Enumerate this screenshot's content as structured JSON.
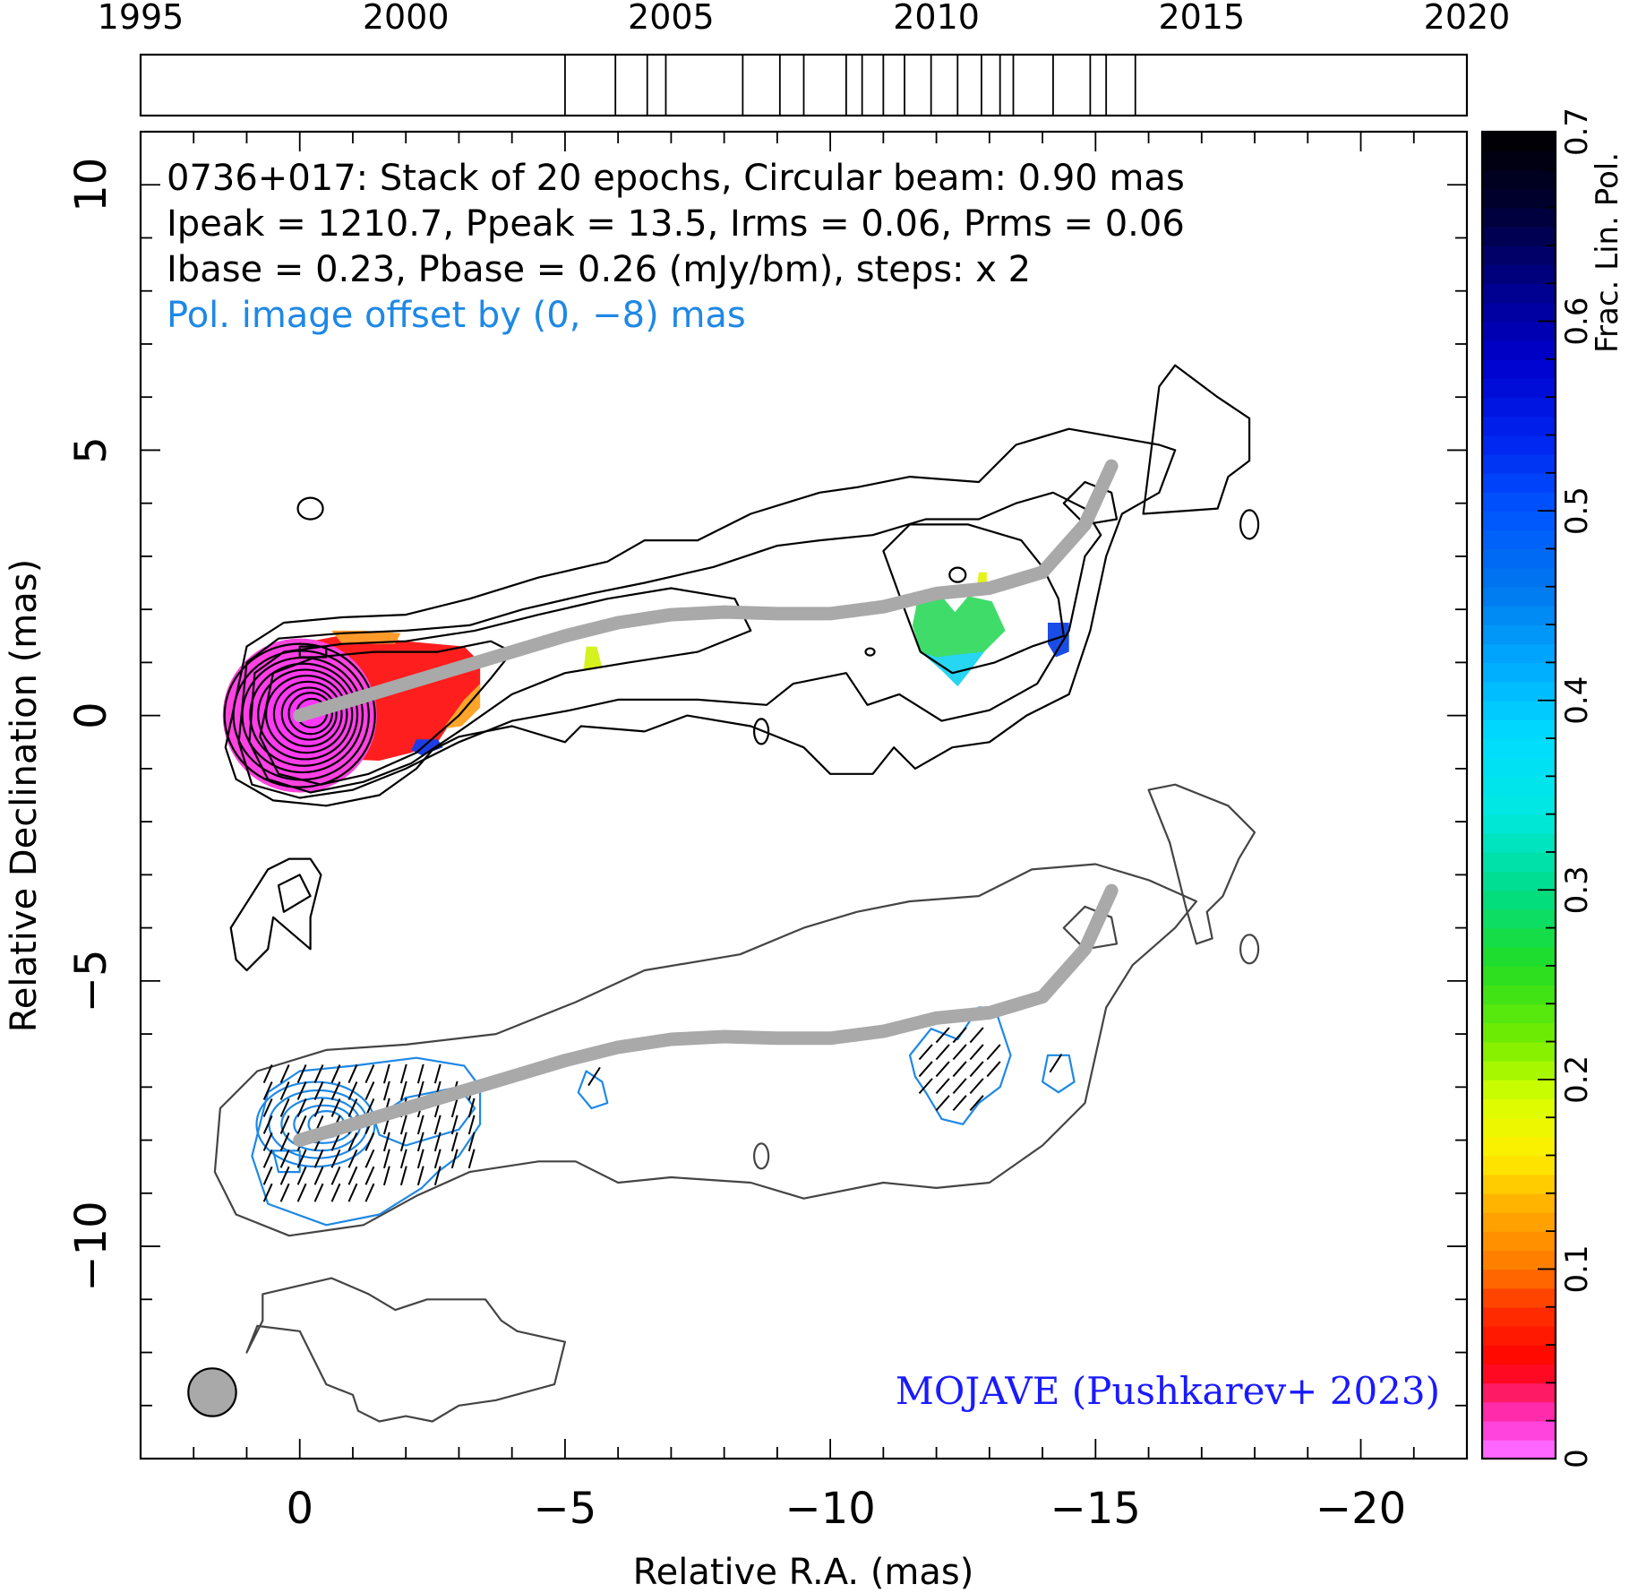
{
  "chart_data": {
    "type": "contour_map",
    "source": "0736+017",
    "header_lines": [
      "0736+017: Stack of 20 epochs, Circular beam: 0.90 mas",
      "Ipeak = 1210.7, Ppeak = 13.5, Irms = 0.06, Prms = 0.06",
      "Ibase = 0.23, Pbase = 0.26 (mJy/bm), steps: x 2"
    ],
    "pol_offset_note": "Pol. image offset by (0, −8) mas",
    "credit": "MOJAVE (Pushkarev+ 2023)",
    "xlabel": "Relative R.A. (mas)",
    "ylabel": "Relative Declination (mas)",
    "xlim": [
      3,
      -22
    ],
    "ylim": [
      -14,
      11
    ],
    "x_ticks": [
      0,
      -5,
      -10,
      -15,
      -20
    ],
    "x_tick_labels": [
      "0",
      "−5",
      "−10",
      "−15",
      "−20"
    ],
    "y_ticks": [
      10,
      5,
      0,
      -5,
      -10
    ],
    "y_tick_labels": [
      "10",
      "5",
      "0",
      "−5",
      "−10"
    ],
    "epoch_axis": {
      "range": [
        1995,
        2020
      ],
      "ticks": [
        1995,
        2000,
        2005,
        2010,
        2015,
        2020
      ],
      "tick_labels": [
        "1995",
        "2000",
        "2005",
        "2010",
        "2015",
        "2020"
      ],
      "epochs": [
        2003.0,
        2003.95,
        2004.55,
        2004.9,
        2006.35,
        2007.05,
        2007.5,
        2008.3,
        2008.6,
        2009.0,
        2009.4,
        2009.9,
        2010.4,
        2010.85,
        2011.2,
        2011.45,
        2012.2,
        2012.9,
        2013.2,
        2013.75
      ]
    },
    "colorbar": {
      "label": "Frac. Lin. Pol.",
      "range": [
        0,
        0.7
      ],
      "ticks": [
        0,
        0.1,
        0.2,
        0.3,
        0.4,
        0.5,
        0.6,
        0.7
      ],
      "tick_labels": [
        "0",
        "0.1",
        "0.2",
        "0.3",
        "0.4",
        "0.5",
        "0.6",
        "0.7"
      ]
    },
    "ridge_line": [
      [
        0,
        0
      ],
      [
        -1,
        0.3
      ],
      [
        -2,
        0.6
      ],
      [
        -3,
        0.9
      ],
      [
        -4,
        1.2
      ],
      [
        -5,
        1.5
      ],
      [
        -6,
        1.75
      ],
      [
        -7,
        1.9
      ],
      [
        -8,
        1.95
      ],
      [
        -9,
        1.92
      ],
      [
        -10,
        1.92
      ],
      [
        -11,
        2.05
      ],
      [
        -12,
        2.3
      ],
      [
        -13,
        2.4
      ],
      [
        -14,
        2.7
      ],
      [
        -14.8,
        3.6
      ],
      [
        -15.3,
        4.7
      ]
    ],
    "beam_diameter_mas": 0.9,
    "beam_position": [
      1.65,
      -12.75
    ]
  }
}
